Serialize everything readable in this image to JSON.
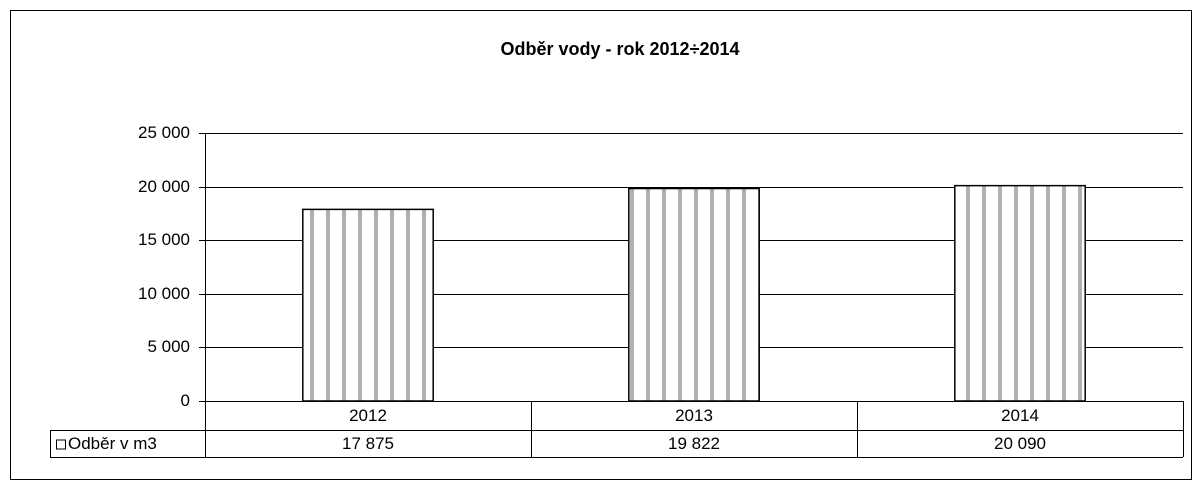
{
  "chart_data": {
    "type": "bar",
    "title": "Odběr vody - rok 2012÷2014",
    "categories": [
      "2012",
      "2013",
      "2014"
    ],
    "series": [
      {
        "name": "Odběr v m3",
        "color": "#b0b0b0",
        "values": [
          17875,
          19822,
          20090
        ],
        "value_labels": [
          "17 875",
          "19 822",
          "20 090"
        ]
      }
    ],
    "ylim": [
      0,
      25000
    ],
    "yticks": [
      {
        "value": 0,
        "label": "0"
      },
      {
        "value": 5000,
        "label": "5 000"
      },
      {
        "value": 10000,
        "label": "10 000"
      },
      {
        "value": 15000,
        "label": "15 000"
      },
      {
        "value": 20000,
        "label": "20 000"
      },
      {
        "value": 25000,
        "label": "25 000"
      }
    ],
    "grid": true,
    "data_table": true
  }
}
